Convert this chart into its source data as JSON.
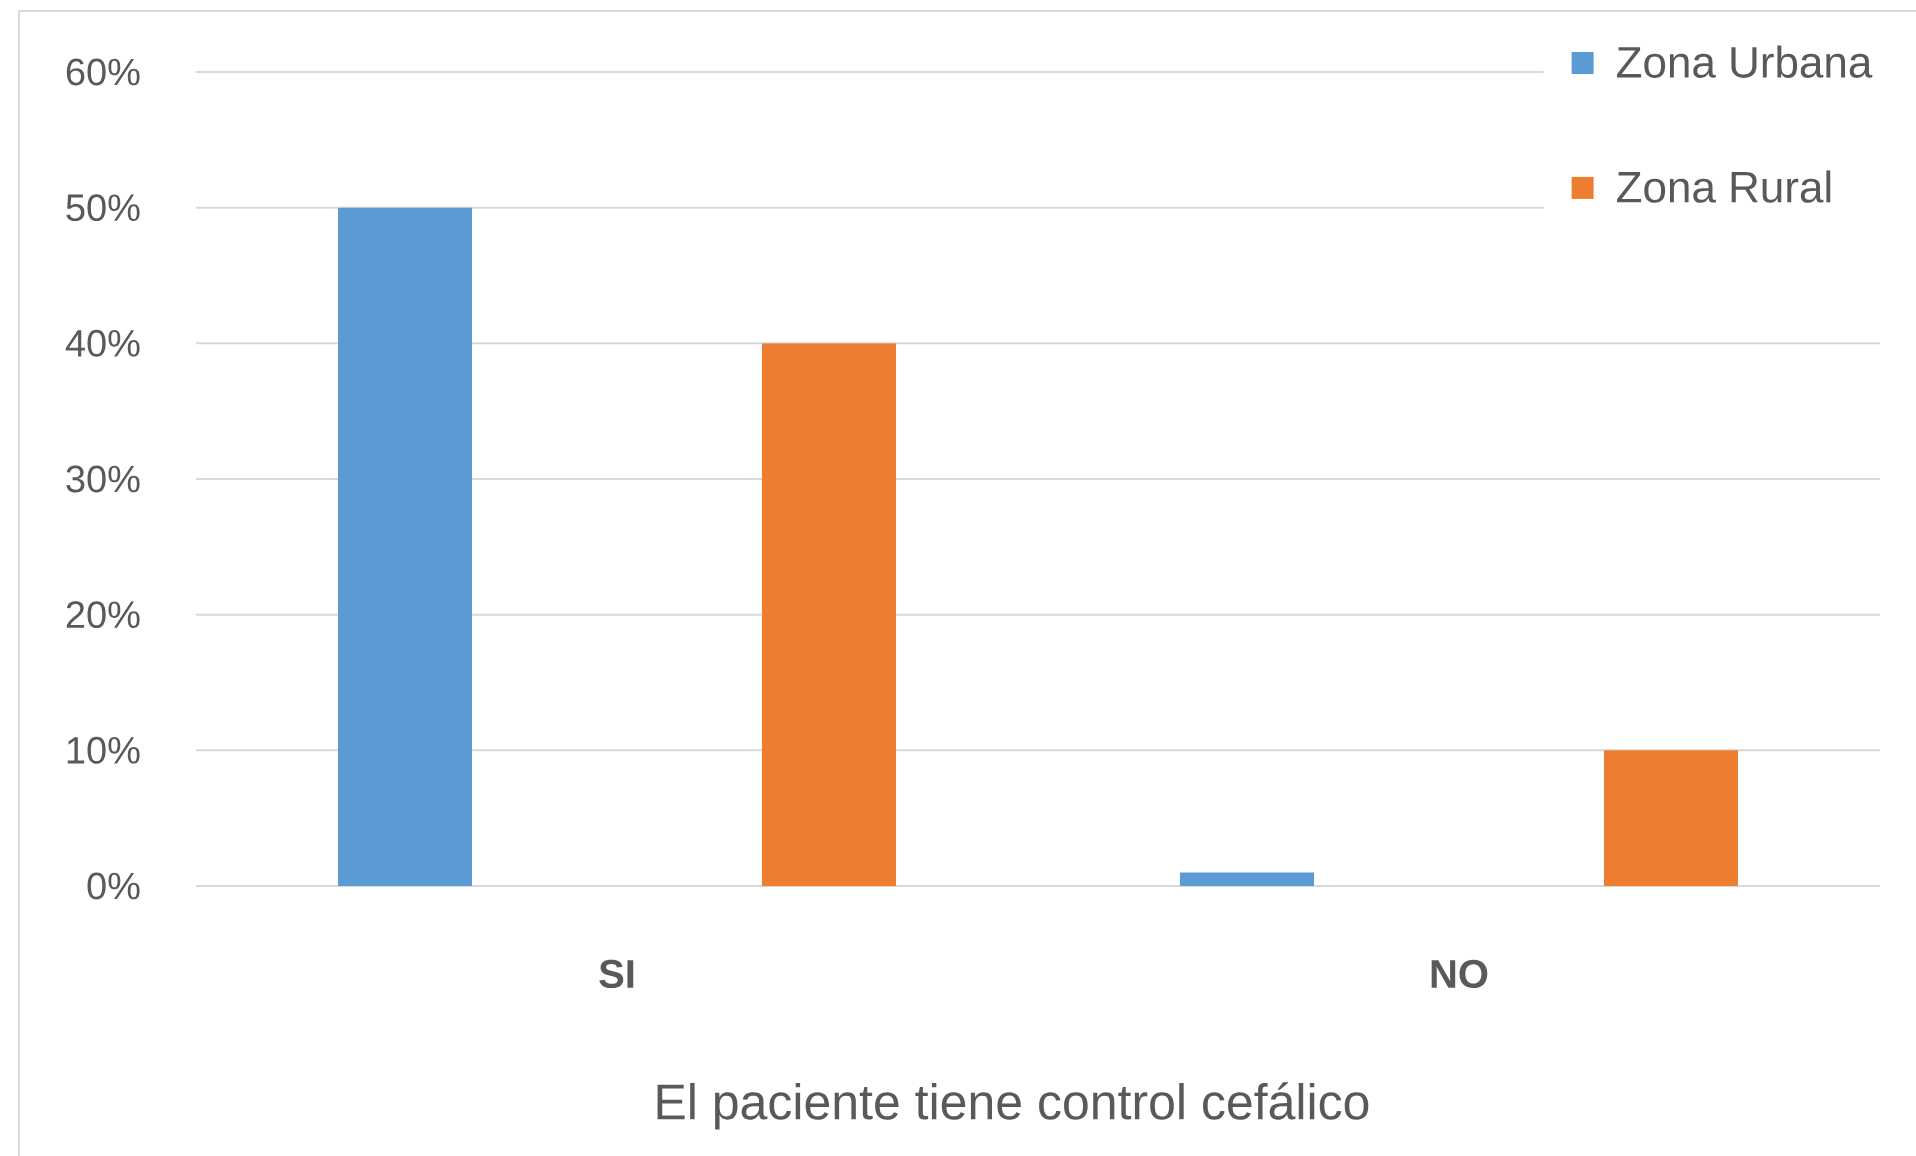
{
  "chart_data": {
    "type": "bar",
    "categories": [
      "SI",
      "NO"
    ],
    "series": [
      {
        "name": "Zona Urbana",
        "color": "#5b9bd5",
        "values": [
          50,
          1
        ]
      },
      {
        "name": "Zona Rural",
        "color": "#ed7d31",
        "values": [
          40,
          10
        ]
      }
    ],
    "xlabel": "El paciente tiene control cefálico",
    "ylim": [
      0,
      60
    ],
    "yticks": [
      {
        "value": 0,
        "label": "0%"
      },
      {
        "value": 10,
        "label": "10%"
      },
      {
        "value": 20,
        "label": "20%"
      },
      {
        "value": 30,
        "label": "30%"
      },
      {
        "value": 40,
        "label": "40%"
      },
      {
        "value": 50,
        "label": "50%"
      },
      {
        "value": 60,
        "label": "60%"
      }
    ],
    "grid": "y",
    "legend": "top right"
  }
}
